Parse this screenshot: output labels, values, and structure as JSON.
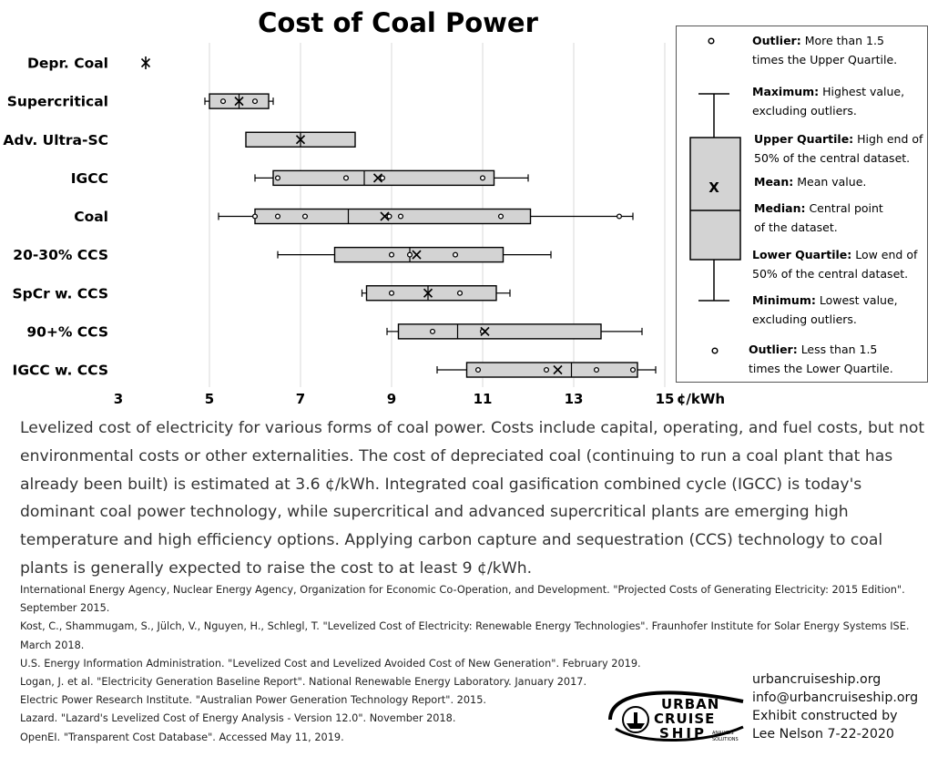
{
  "chart_data": {
    "type": "boxplot",
    "title": "Cost of Coal Power",
    "unit_label": "¢/kWh",
    "xlim": [
      3,
      15
    ],
    "xticks": [
      3,
      5,
      7,
      9,
      11,
      13,
      15
    ],
    "grid": "vertical",
    "legend_placement": "right",
    "categories": [
      "Depr. Coal",
      "Supercritical",
      "Adv. Ultra-SC",
      "IGCC",
      "Coal",
      "20-30% CCS",
      "SpCr w. CCS",
      "90+% CCS",
      "IGCC w. CCS"
    ],
    "boxes": [
      {
        "category": "Depr. Coal",
        "min": 3.6,
        "q1": 3.6,
        "median": 3.6,
        "q3": 3.6,
        "max": 3.6,
        "mean": 3.6,
        "points": []
      },
      {
        "category": "Supercritical",
        "min": 4.9,
        "q1": 5.0,
        "median": 5.65,
        "q3": 6.3,
        "max": 6.4,
        "mean": 5.65,
        "points": [
          5.3,
          6.0
        ]
      },
      {
        "category": "Adv. Ultra-SC",
        "min": 5.8,
        "q1": 5.8,
        "median": 7.0,
        "q3": 8.2,
        "max": 8.2,
        "mean": 7.0,
        "points": []
      },
      {
        "category": "IGCC",
        "min": 6.0,
        "q1": 6.4,
        "median": 8.4,
        "q3": 11.25,
        "max": 12.0,
        "mean": 8.7,
        "points": [
          6.5,
          8.0,
          8.8,
          11.0
        ]
      },
      {
        "category": "Coal",
        "min": 5.2,
        "q1": 6.0,
        "median": 8.05,
        "q3": 12.05,
        "max": 14.3,
        "mean": 8.85,
        "points": [
          6.0,
          6.5,
          7.1,
          8.95,
          9.2,
          11.4,
          14.0
        ]
      },
      {
        "category": "20-30% CCS",
        "min": 6.5,
        "q1": 7.75,
        "median": 9.4,
        "q3": 11.45,
        "max": 12.5,
        "mean": 9.55,
        "points": [
          9.0,
          9.4,
          10.4
        ]
      },
      {
        "category": "SpCr w. CCS",
        "min": 8.35,
        "q1": 8.45,
        "median": 9.8,
        "q3": 11.3,
        "max": 11.6,
        "mean": 9.8,
        "points": [
          9.0,
          10.5
        ]
      },
      {
        "category": "90+% CCS",
        "min": 8.9,
        "q1": 9.15,
        "median": 10.45,
        "q3": 13.6,
        "max": 14.5,
        "mean": 11.05,
        "points": [
          9.9,
          11.0
        ]
      },
      {
        "category": "IGCC w. CCS",
        "min": 10.0,
        "q1": 10.65,
        "median": 12.95,
        "q3": 14.4,
        "max": 14.8,
        "mean": 12.65,
        "points": [
          10.9,
          12.4,
          13.5,
          14.3
        ]
      }
    ]
  },
  "legend": {
    "outlier_high_term": "Outlier:",
    "outlier_high_desc_1": " More than 1.5",
    "outlier_high_desc_2": "times the Upper Quartile.",
    "maximum_term": "Maximum:",
    "maximum_desc_1": " Highest value,",
    "maximum_desc_2": "excluding outliers.",
    "upper_quartile_term": "Upper Quartile:",
    "upper_quartile_desc_1": " High end of",
    "upper_quartile_desc_2": "50% of the central dataset.",
    "mean_term": "Mean:",
    "mean_desc": " Mean value.",
    "median_term": "Median:",
    "median_desc_1": " Central point",
    "median_desc_2": "of the dataset.",
    "lower_quartile_term": "Lower Quartile:",
    "lower_quartile_desc_1": " Low end of",
    "lower_quartile_desc_2": "50% of the central dataset.",
    "minimum_term": "Minimum:",
    "minimum_desc_1": " Lowest value,",
    "minimum_desc_2": "excluding outliers.",
    "outlier_low_term": "Outlier:",
    "outlier_low_desc_1": " Less than 1.5",
    "outlier_low_desc_2": "times the Lower Quartile.",
    "mean_marker": "X"
  },
  "caption": "Levelized cost of electricity for various forms of coal power. Costs include capital, operating, and fuel costs, but not environmental costs or other externalities. The cost of depreciated coal (continuing to run a coal plant that has already been built) is estimated at 3.6 ¢/kWh. Integrated coal gasification combined cycle (IGCC) is today's dominant coal power technology, while supercritical and advanced supercritical plants are emerging high temperature and high efficiency options. Applying carbon capture and sequestration (CCS) technology to coal plants is generally expected to raise the cost to at least 9 ¢/kWh.",
  "references": [
    "International Energy Agency, Nuclear Energy Agency, Organization for Economic Co-Operation, and Development. \"Projected Costs of Generating Electricity: 2015 Edition\". September 2015.",
    "Kost, C., Shammugam, S., Jülch, V., Nguyen, H., Schlegl, T. \"Levelized Cost of Electricity: Renewable Energy Technologies\". Fraunhofer Institute for Solar Energy Systems ISE. March 2018.",
    "U.S. Energy Information Administration. \"Levelized Cost and Levelized Avoided Cost of New Generation\". February 2019.",
    "Logan, J. et al. \"Electricity Generation Baseline Report\". National Renewable Energy Laboratory. January 2017.",
    "Electric Power Research Institute. \"Australian Power Generation Technology Report\". 2015.",
    "Lazard. \"Lazard's Levelized Cost of Energy Analysis - Version 12.0\". November 2018.",
    "OpenEI. \"Transparent Cost Database\". Accessed May 11, 2019."
  ],
  "contact": {
    "website": "urbancruiseship.org",
    "email": "info@urbancruiseship.org",
    "credit_1": "Exhibit constructed by",
    "credit_2": "Lee Nelson 7-22-2020"
  },
  "logo": {
    "line1": "URBAN",
    "line2": "CRUISE",
    "line3": "SHIP",
    "tag1": "ANALYSIS",
    "tag2": "SOLUTIONS",
    "icon": "ship-logo-icon"
  }
}
